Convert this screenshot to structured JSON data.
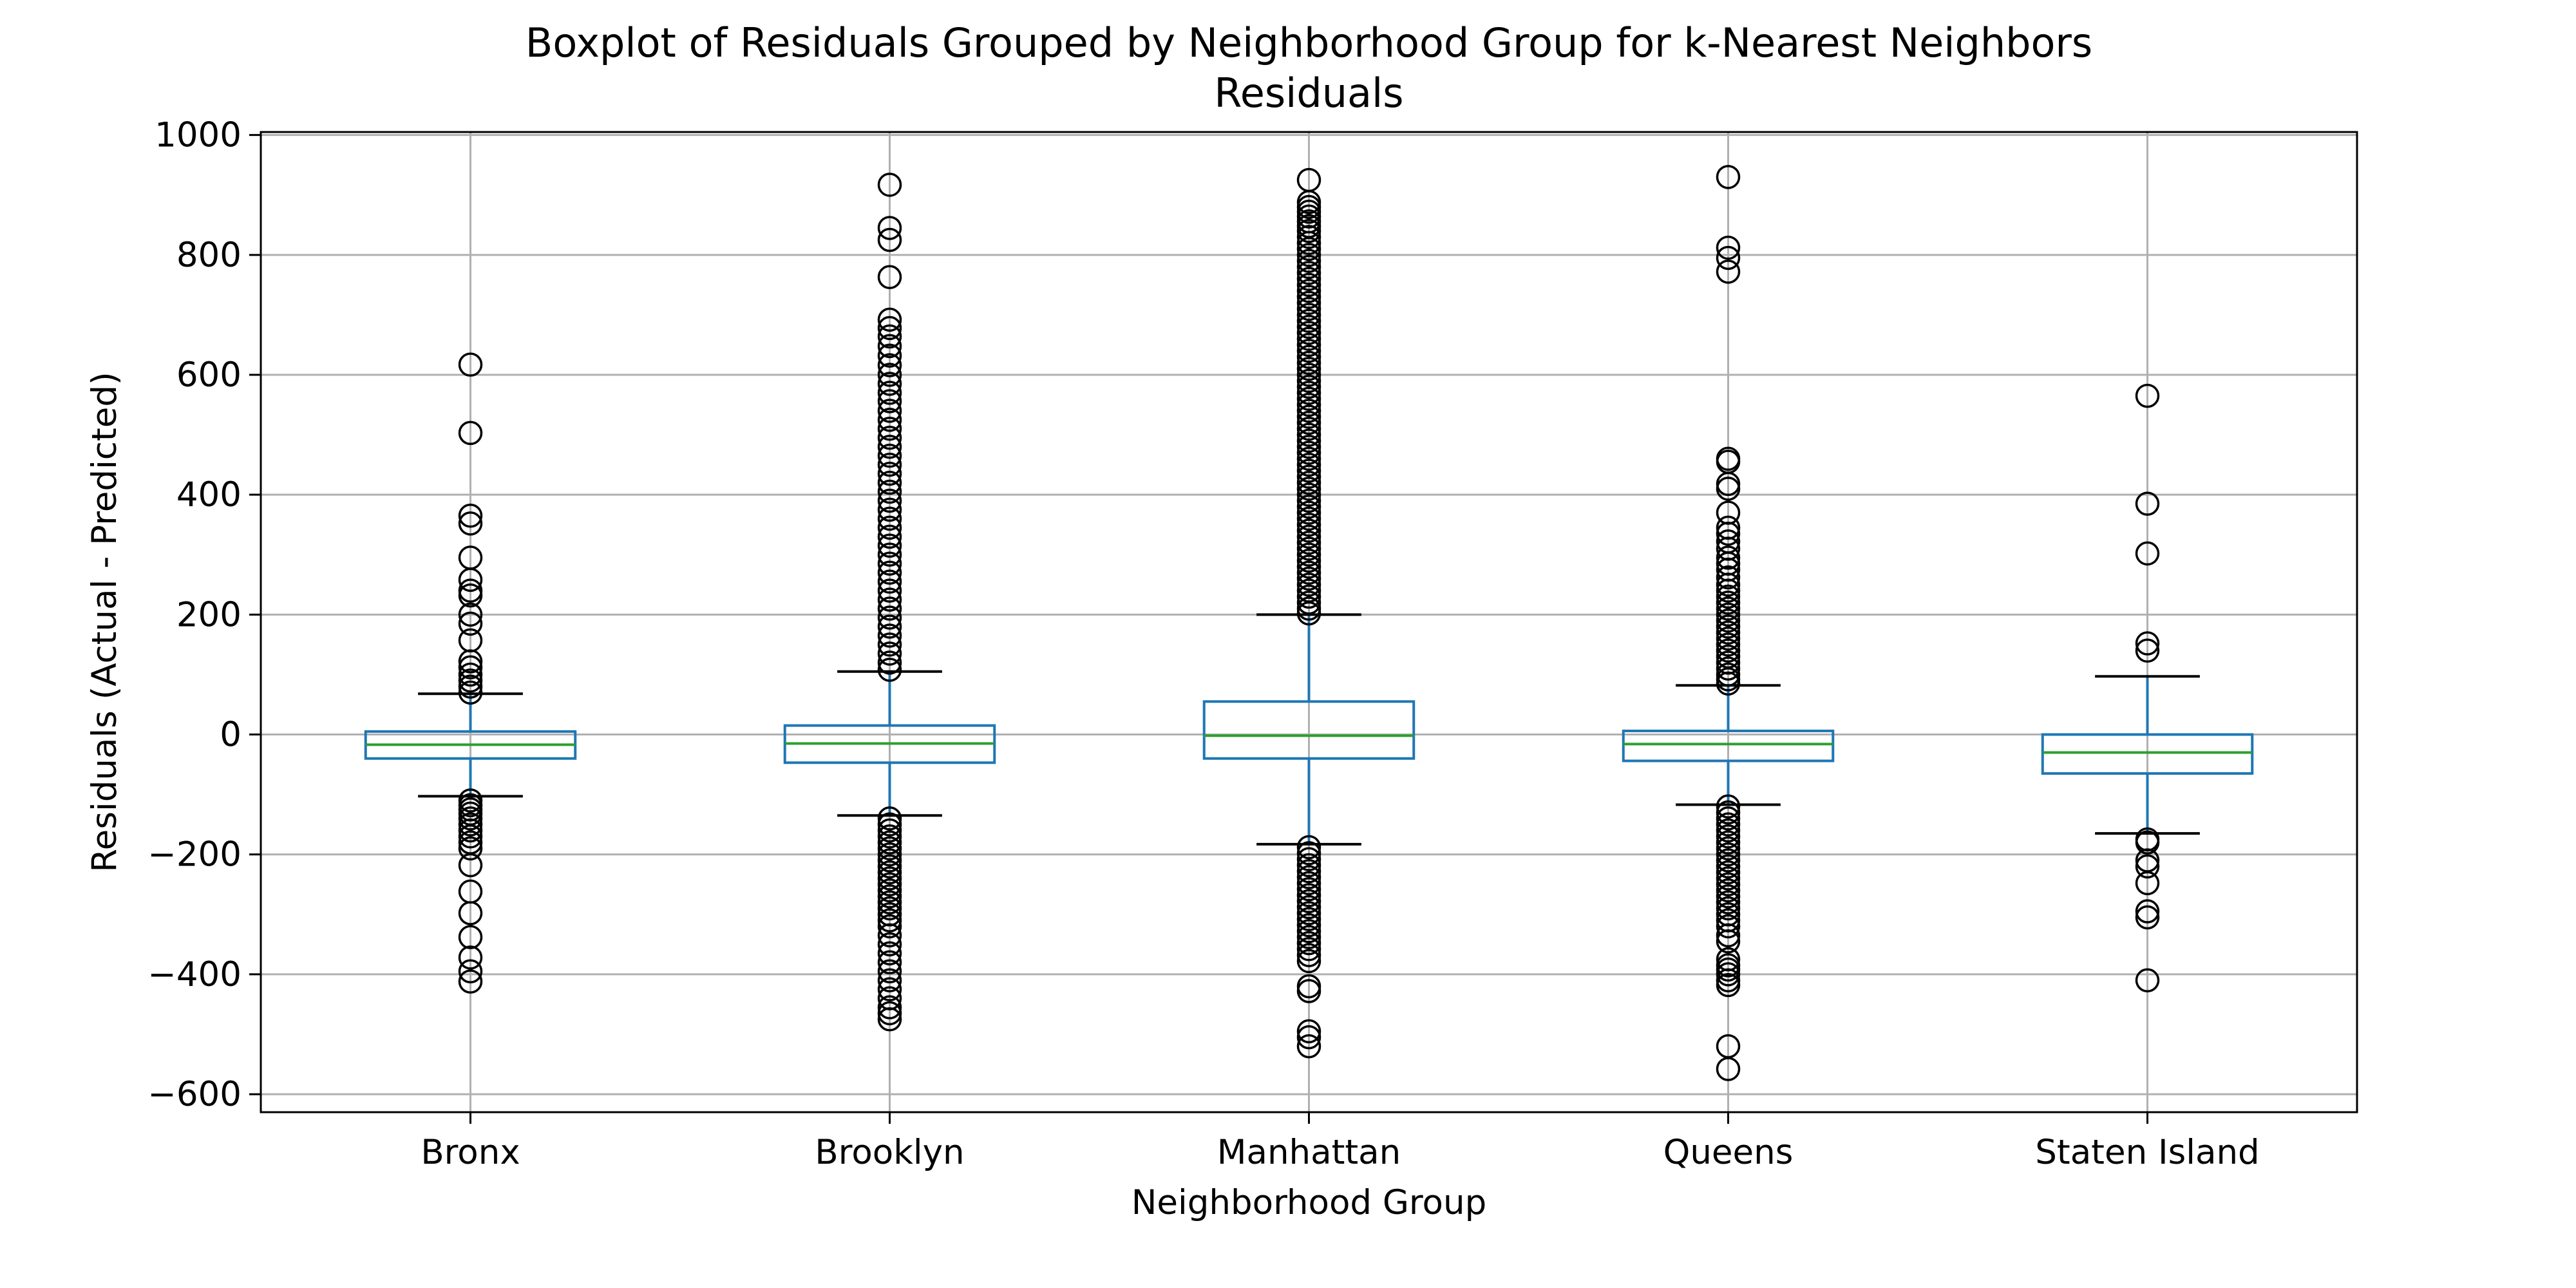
{
  "chart_data": {
    "type": "boxplot",
    "title": "Boxplot of Residuals Grouped by Neighborhood Group for k-Nearest Neighbors",
    "subtitle": "Residuals",
    "xlabel": "Neighborhood Group",
    "ylabel": "Residuals (Actual - Predicted)",
    "ylim": [
      -630,
      1005
    ],
    "yticks": [
      -600,
      -400,
      -200,
      0,
      200,
      400,
      600,
      800,
      1000
    ],
    "yticks_labels": [
      "−600",
      "−400",
      "−200",
      "0",
      "200",
      "400",
      "600",
      "800",
      "1000"
    ],
    "grid": true,
    "categories": [
      "Bronx",
      "Brooklyn",
      "Manhattan",
      "Queens",
      "Staten Island"
    ],
    "colors": {
      "box": "#1f77b4",
      "median": "#2ca02c",
      "flier": "#000000",
      "grid": "#b0b0b0"
    },
    "boxes": [
      {
        "category": "Bronx",
        "whisker_low": -103,
        "q1": -40,
        "median": -17,
        "q3": 5,
        "whisker_high": 68,
        "fliers": [
          617,
          503,
          365,
          352,
          295,
          258,
          240,
          232,
          200,
          185,
          157,
          122,
          112,
          100,
          90,
          80,
          70,
          -110,
          -118,
          -125,
          -132,
          -140,
          -150,
          -160,
          -170,
          -180,
          -190,
          -218,
          -262,
          -298,
          -338,
          -372,
          -395,
          -412
        ]
      },
      {
        "category": "Brooklyn",
        "whisker_low": -135,
        "q1": -47,
        "median": -15,
        "q3": 15,
        "whisker_high": 105,
        "fliers": [
          917,
          845,
          825,
          763,
          692,
          678,
          664,
          648,
          632,
          616,
          600,
          585,
          570,
          556,
          540,
          525,
          510,
          495,
          480,
          465,
          450,
          435,
          420,
          405,
          390,
          375,
          360,
          345,
          330,
          315,
          300,
          285,
          270,
          255,
          240,
          225,
          210,
          195,
          180,
          165,
          150,
          135,
          120,
          108,
          -140,
          -150,
          -160,
          -170,
          -180,
          -190,
          -200,
          -210,
          -220,
          -230,
          -240,
          -250,
          -260,
          -270,
          -280,
          -290,
          -300,
          -310,
          -320,
          -335,
          -350,
          -365,
          -380,
          -395,
          -410,
          -425,
          -440,
          -455,
          -465,
          -475
        ]
      },
      {
        "category": "Manhattan",
        "whisker_low": -183,
        "q1": -40,
        "median": -2,
        "q3": 55,
        "whisker_high": 200,
        "fliers": [
          925,
          888,
          880,
          872,
          864,
          856,
          848,
          840,
          830,
          820,
          810,
          800,
          790,
          780,
          770,
          760,
          750,
          740,
          730,
          720,
          710,
          700,
          690,
          680,
          670,
          660,
          650,
          640,
          630,
          620,
          610,
          600,
          590,
          580,
          570,
          560,
          550,
          540,
          530,
          520,
          510,
          500,
          490,
          480,
          470,
          460,
          450,
          440,
          430,
          420,
          410,
          400,
          390,
          380,
          370,
          360,
          350,
          340,
          330,
          320,
          310,
          300,
          290,
          280,
          270,
          260,
          250,
          240,
          230,
          220,
          210,
          202,
          -188,
          -198,
          -208,
          -218,
          -228,
          -238,
          -248,
          -258,
          -268,
          -278,
          -288,
          -298,
          -308,
          -318,
          -328,
          -338,
          -348,
          -358,
          -368,
          -378,
          -420,
          -428,
          -495,
          -505,
          -520
        ]
      },
      {
        "category": "Queens",
        "whisker_low": -117,
        "q1": -44,
        "median": -16,
        "q3": 6,
        "whisker_high": 82,
        "fliers": [
          930,
          812,
          795,
          772,
          460,
          455,
          418,
          410,
          370,
          345,
          335,
          322,
          310,
          295,
          285,
          275,
          262,
          250,
          240,
          230,
          220,
          210,
          200,
          190,
          180,
          170,
          160,
          150,
          140,
          130,
          120,
          110,
          100,
          92,
          85,
          -120,
          -130,
          -140,
          -150,
          -160,
          -170,
          -180,
          -190,
          -200,
          -210,
          -220,
          -230,
          -240,
          -250,
          -260,
          -270,
          -280,
          -290,
          -300,
          -310,
          -320,
          -335,
          -345,
          -375,
          -385,
          -392,
          -400,
          -410,
          -418,
          -520,
          -558
        ]
      },
      {
        "category": "Staten Island",
        "whisker_low": -165,
        "q1": -65,
        "median": -30,
        "q3": 0,
        "whisker_high": 97,
        "fliers": [
          565,
          385,
          302,
          152,
          140,
          -175,
          -180,
          -210,
          -220,
          -248,
          -295,
          -305,
          -410
        ]
      }
    ]
  }
}
